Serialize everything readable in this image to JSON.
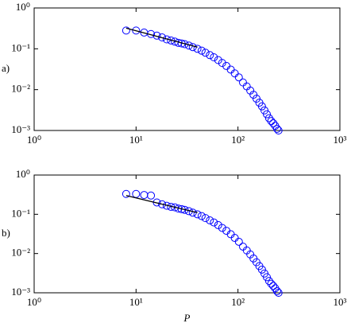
{
  "chart_data": [
    {
      "type": "scatter",
      "panel_label": "a)",
      "log_x": true,
      "log_y": true,
      "xlim": [
        1,
        1000
      ],
      "ylim": [
        0.001,
        1
      ],
      "xticks": [
        {
          "value": 1,
          "label": "10⁰"
        },
        {
          "value": 10,
          "label": "10¹"
        },
        {
          "value": 100,
          "label": "10²"
        },
        {
          "value": 1000,
          "label": "10³"
        }
      ],
      "yticks": [
        {
          "value": 0.001,
          "label": "10⁻³"
        },
        {
          "value": 0.01,
          "label": "10⁻²"
        },
        {
          "value": 0.1,
          "label": "10⁻¹"
        },
        {
          "value": 1,
          "label": "10⁰"
        }
      ],
      "series": [
        {
          "marker": "circle",
          "color": "#0000ff",
          "x": [
            8,
            10,
            12,
            14,
            16,
            18,
            20,
            22,
            24,
            26,
            28,
            30,
            33,
            36,
            40,
            44,
            48,
            53,
            58,
            64,
            70,
            77,
            85,
            93,
            102,
            112,
            122,
            132,
            142,
            152,
            162,
            172,
            182,
            192,
            202,
            212,
            222,
            232,
            242,
            250
          ],
          "values": [
            0.28,
            0.28,
            0.25,
            0.23,
            0.21,
            0.19,
            0.17,
            0.16,
            0.15,
            0.14,
            0.135,
            0.13,
            0.12,
            0.11,
            0.1,
            0.09,
            0.08,
            0.07,
            0.062,
            0.053,
            0.045,
            0.038,
            0.031,
            0.025,
            0.02,
            0.015,
            0.012,
            0.0095,
            0.0075,
            0.006,
            0.0048,
            0.0039,
            0.0031,
            0.0025,
            0.002,
            0.0017,
            0.0015,
            0.0013,
            0.0011,
            0.001
          ]
        },
        {
          "marker": "line",
          "color": "#000000",
          "x": [
            8,
            40
          ],
          "values": [
            0.32,
            0.11
          ]
        }
      ]
    },
    {
      "type": "scatter",
      "panel_label": "b)",
      "xlabel": "P",
      "log_x": true,
      "log_y": true,
      "xlim": [
        1,
        1000
      ],
      "ylim": [
        0.001,
        1
      ],
      "xticks": [
        {
          "value": 1,
          "label": "10⁰"
        },
        {
          "value": 10,
          "label": "10¹"
        },
        {
          "value": 100,
          "label": "10²"
        },
        {
          "value": 1000,
          "label": "10³"
        }
      ],
      "yticks": [
        {
          "value": 0.001,
          "label": "10⁻³"
        },
        {
          "value": 0.01,
          "label": "10⁻²"
        },
        {
          "value": 0.1,
          "label": "10⁻¹"
        },
        {
          "value": 1,
          "label": "10⁰"
        }
      ],
      "series": [
        {
          "marker": "circle",
          "color": "#0000ff",
          "x": [
            8,
            10,
            12,
            14,
            16,
            18,
            20,
            22,
            24,
            26,
            28,
            30,
            33,
            36,
            40,
            44,
            48,
            53,
            58,
            64,
            70,
            77,
            85,
            93,
            102,
            112,
            122,
            132,
            142,
            152,
            162,
            172,
            182,
            192,
            202,
            212,
            222,
            232,
            242,
            250
          ],
          "values": [
            0.33,
            0.33,
            0.31,
            0.3,
            0.2,
            0.18,
            0.165,
            0.155,
            0.15,
            0.14,
            0.135,
            0.13,
            0.12,
            0.11,
            0.1,
            0.09,
            0.08,
            0.07,
            0.062,
            0.053,
            0.045,
            0.038,
            0.031,
            0.025,
            0.02,
            0.015,
            0.012,
            0.0095,
            0.0075,
            0.006,
            0.0048,
            0.0039,
            0.0031,
            0.0025,
            0.002,
            0.0017,
            0.0015,
            0.0013,
            0.0011,
            0.001
          ]
        },
        {
          "marker": "line",
          "color": "#000000",
          "x": [
            8,
            40
          ],
          "values": [
            0.3,
            0.11
          ]
        }
      ]
    }
  ]
}
